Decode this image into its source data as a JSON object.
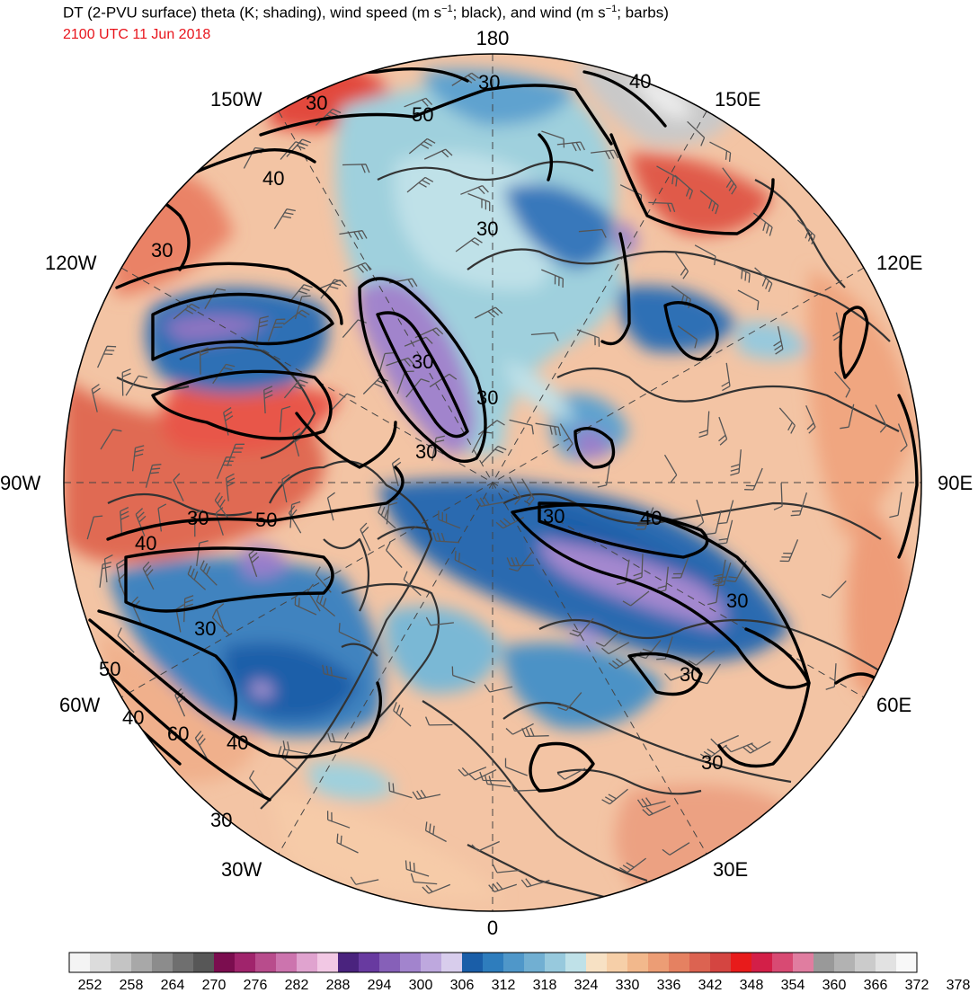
{
  "header": {
    "title_pre": "DT (2-PVU surface) theta (K; shading), wind speed (m s",
    "title_mid": "; black), and wind (m s",
    "title_post": "; barbs)",
    "title_exp": "−1",
    "valid_time": "2100 UTC 11 Jun 2018"
  },
  "map": {
    "projection": "north-polar-stereographic",
    "longitude_labels": [
      "180",
      "150E",
      "120E",
      "90E",
      "60E",
      "30E",
      "0",
      "30W",
      "60W",
      "90W",
      "120W",
      "150W"
    ],
    "contour_labels": [
      "30",
      "40",
      "50",
      "60"
    ],
    "colors": {
      "land_outline": "#333333",
      "wind_contour": "#000000",
      "graticule": "#444444"
    }
  },
  "colorbar": {
    "ticks": [
      "252",
      "258",
      "264",
      "270",
      "276",
      "282",
      "288",
      "294",
      "300",
      "306",
      "312",
      "318",
      "324",
      "330",
      "336",
      "342",
      "348",
      "354",
      "360",
      "366",
      "372",
      "378"
    ],
    "colors": [
      "#f4f4f4",
      "#dcdcdc",
      "#c4c4c4",
      "#a8a8a8",
      "#8c8c8c",
      "#6f6f6f",
      "#575757",
      "#7b0d4f",
      "#a0246c",
      "#b84c8c",
      "#cc74ae",
      "#e0a3cf",
      "#f2c8e4",
      "#4a237e",
      "#683aa0",
      "#8660b8",
      "#a284cd",
      "#bea8de",
      "#d8cdec",
      "#1a5ea8",
      "#2e7dbd",
      "#4f97c9",
      "#71afd2",
      "#97c9dd",
      "#bfe1e8",
      "#f7e1c4",
      "#f6cfa8",
      "#f2b88c",
      "#ec9d75",
      "#e58161",
      "#dc6351",
      "#d44541",
      "#e81b1b",
      "#d31f48",
      "#d84a73",
      "#e07da0",
      "#999999",
      "#b2b2b2",
      "#cbcbcb",
      "#e2e2e2",
      "#f8f8f8"
    ]
  }
}
